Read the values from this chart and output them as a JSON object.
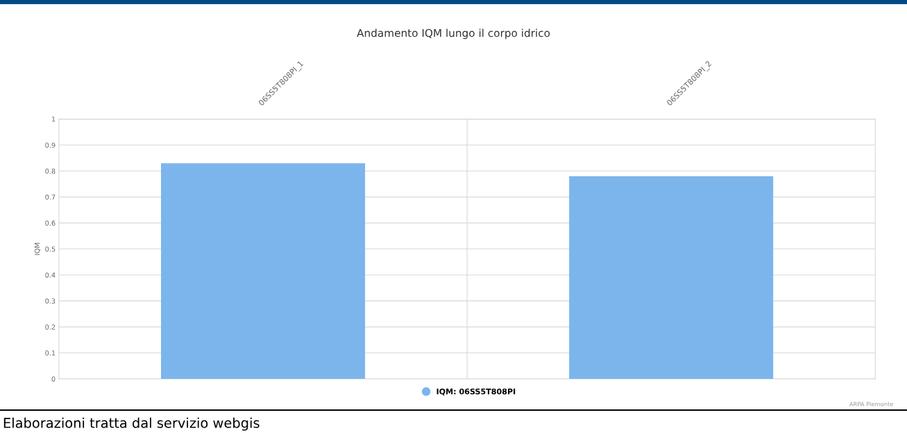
{
  "chart_data": {
    "type": "bar",
    "title": "Andamento IQM lungo il corpo idrico",
    "ylabel": "IQM",
    "categories": [
      "06SS5T808PI_1",
      "06SS5T808PI_2"
    ],
    "series": [
      {
        "name": "IQM: 06SS5T808PI",
        "color": "#7cb5ec",
        "values": [
          0.83,
          0.78
        ]
      }
    ],
    "ylim": [
      0,
      1
    ],
    "yticks": [
      0,
      0.1,
      0.2,
      0.3,
      0.4,
      0.5,
      0.6,
      0.7,
      0.8,
      0.9,
      1
    ],
    "grid": true,
    "legend": "bottom",
    "annotations": [
      "ARPA Piemonte",
      "Elaborazioni tratta dal servizio webgis"
    ]
  }
}
